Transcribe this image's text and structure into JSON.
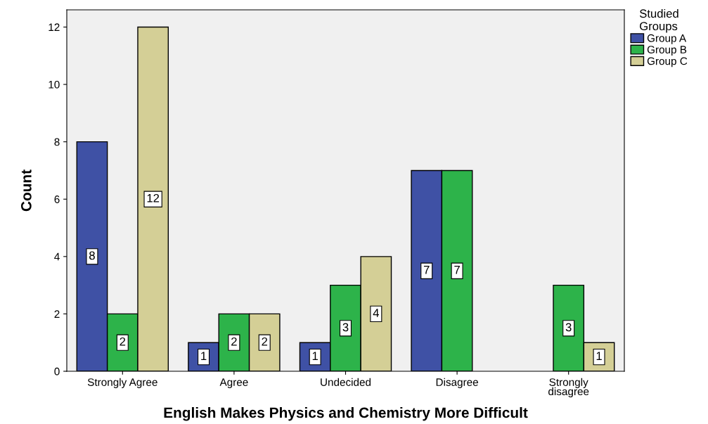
{
  "chart_data": {
    "type": "bar",
    "xlabel": "English Makes Physics and Chemistry More Difficult",
    "ylabel": "Count",
    "legend_title": "Studied\nGroups",
    "categories": [
      "Strongly Agree",
      "Agree",
      "Undecided",
      "Disagree",
      "Strongly\ndisagree"
    ],
    "series": [
      {
        "name": "Group A",
        "color": "#3f51a5",
        "values": [
          8,
          1,
          1,
          7,
          null
        ]
      },
      {
        "name": "Group B",
        "color": "#2db34a",
        "values": [
          2,
          2,
          3,
          7,
          3
        ]
      },
      {
        "name": "Group C",
        "color": "#d4cf96",
        "values": [
          12,
          2,
          4,
          null,
          1
        ]
      }
    ],
    "ylim": [
      0,
      12.6
    ],
    "yticks": [
      0,
      2,
      4,
      6,
      8,
      10,
      12
    ],
    "grid": false,
    "legend": "top right",
    "data_labels": true
  }
}
